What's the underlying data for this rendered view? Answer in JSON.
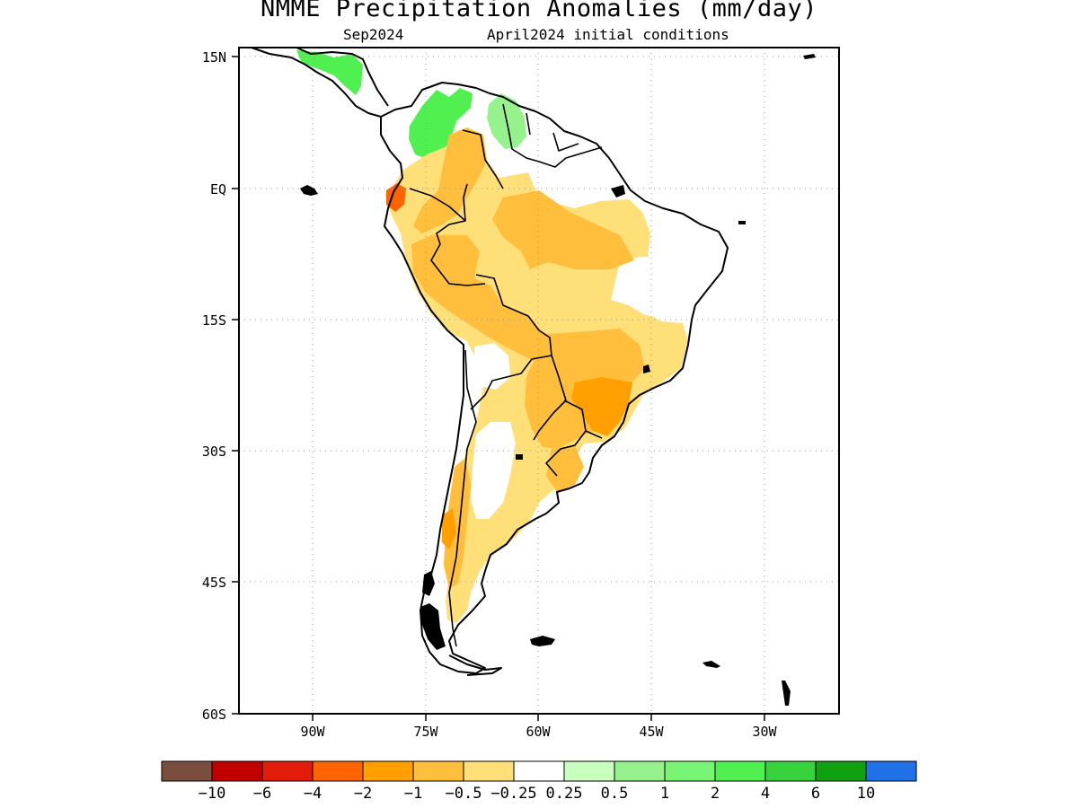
{
  "title": "NMME Precipitation Anomalies (mm/day)",
  "subtitle_left": "Sep2024",
  "subtitle_right": "April2024 initial conditions",
  "lat_labels": [
    "15N",
    "EQ",
    "15S",
    "30S",
    "45S",
    "60S"
  ],
  "lon_labels": [
    "90W",
    "75W",
    "60W",
    "45W",
    "30W"
  ],
  "colorbar": {
    "colors": [
      "#7a4e3f",
      "#c30000",
      "#e11c08",
      "#ff6400",
      "#ffa000",
      "#ffbe3c",
      "#ffe078",
      "#ffffff",
      "#c8ffbe",
      "#96f28c",
      "#78f572",
      "#50f050",
      "#37d23c",
      "#10a010",
      "#2070e8"
    ],
    "labels": [
      "-10",
      "-6",
      "-4",
      "-2",
      "-1",
      "-0.5",
      "-0.25",
      "0.25",
      "0.5",
      "1",
      "2",
      "4",
      "6",
      "10"
    ]
  }
}
